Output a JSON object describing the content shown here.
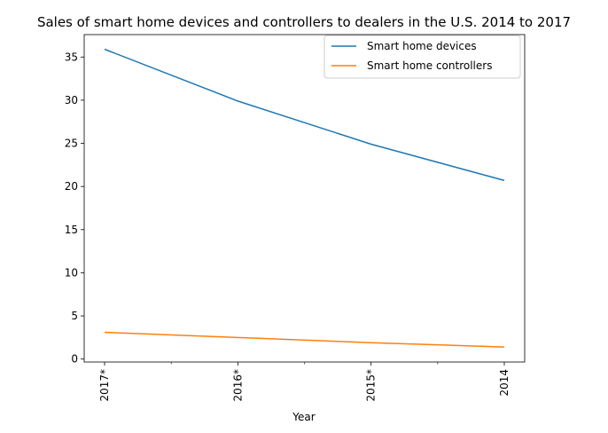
{
  "chart_data": {
    "type": "line",
    "title": "Sales of smart home devices and controllers to dealers in the U.S. 2014 to 2017",
    "xlabel": "Year",
    "ylabel": "",
    "categories": [
      "2017*",
      "2016*",
      "2015*",
      "2014"
    ],
    "series": [
      {
        "name": "Smart home devices",
        "values": [
          35.9,
          29.9,
          24.9,
          20.7
        ],
        "color": "#1f77b4"
      },
      {
        "name": "Smart home controllers",
        "values": [
          3.1,
          2.5,
          1.9,
          1.4
        ],
        "color": "#ff7f0e"
      }
    ],
    "ylim": [
      -0.34,
      37.6
    ],
    "yticks": [
      0,
      5,
      10,
      15,
      20,
      25,
      30,
      35
    ],
    "legend": "top-right",
    "grid": false
  }
}
